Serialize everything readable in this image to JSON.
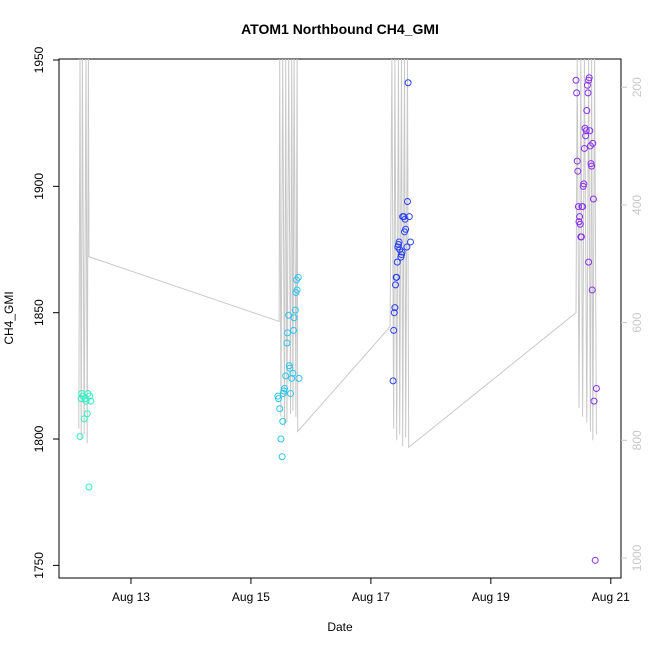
{
  "chart_data": {
    "type": "scatter",
    "title": "ATOM1 Northbound CH4_GMI",
    "xlabel": "Date",
    "ylabel": "CH4_GMI",
    "xlim": [
      11.8,
      21.17
    ],
    "xticks": [
      {
        "value": 13,
        "label": "Aug 13"
      },
      {
        "value": 15,
        "label": "Aug 15"
      },
      {
        "value": 17,
        "label": "Aug 17"
      },
      {
        "value": 19,
        "label": "Aug 19"
      },
      {
        "value": 21,
        "label": "Aug 21"
      }
    ],
    "ylim": [
      1745,
      1950.4
    ],
    "yticks": [
      1750,
      1800,
      1850,
      1900,
      1950
    ],
    "y2lim": [
      1034,
      152
    ],
    "y2ticks": [
      200,
      400,
      600,
      800,
      1000
    ],
    "y2color": "#c8c8c8",
    "series": [
      {
        "type": "line",
        "axis": "y2",
        "color": "#c8c8c8",
        "x": [
          12.13,
          12.15,
          12.17,
          12.19,
          12.22,
          12.25,
          12.27,
          12.29,
          12.3,
          15.47,
          15.48,
          15.5,
          15.53,
          15.56,
          15.58,
          15.6,
          15.63,
          15.66,
          15.68,
          15.7,
          15.72,
          15.75,
          15.77,
          15.78,
          17.32,
          17.35,
          17.38,
          17.4,
          17.43,
          17.46,
          17.48,
          17.51,
          17.53,
          17.56,
          17.58,
          17.61,
          17.63,
          20.42,
          20.44,
          20.47,
          20.5,
          20.53,
          20.56,
          20.6,
          20.63,
          20.66,
          20.68,
          20.7,
          20.73,
          20.76
        ],
        "values": [
          780,
          150,
          800,
          150,
          790,
          150,
          805,
          150,
          488,
          598,
          150,
          760,
          150,
          775,
          150,
          770,
          150,
          755,
          150,
          750,
          150,
          760,
          150,
          785,
          607,
          150,
          780,
          150,
          800,
          150,
          790,
          150,
          810,
          150,
          795,
          150,
          812,
          583,
          150,
          745,
          150,
          760,
          150,
          770,
          150,
          785,
          150,
          800,
          150,
          790
        ]
      },
      {
        "type": "points",
        "color": "#2ff0c0",
        "x": [
          12.15,
          12.17,
          12.18,
          12.2,
          12.22,
          12.24,
          12.25,
          12.27,
          12.28,
          12.3,
          12.31,
          12.33
        ],
        "values": [
          1801,
          1816,
          1818,
          1817,
          1808,
          1816,
          1815,
          1810,
          1818,
          1781,
          1817,
          1815
        ]
      },
      {
        "type": "points",
        "color": "#2ec4f0",
        "x": [
          15.45,
          15.46,
          15.48,
          15.5,
          15.52,
          15.53,
          15.54,
          15.55,
          15.56,
          15.58,
          15.6,
          15.61,
          15.63,
          15.64,
          15.65,
          15.66,
          15.68,
          15.7,
          15.71,
          15.72,
          15.74,
          15.75,
          15.76,
          15.77,
          15.79,
          15.8
        ],
        "values": [
          1817,
          1816,
          1812,
          1800,
          1793,
          1807,
          1818,
          1819,
          1820,
          1825,
          1838,
          1842,
          1849,
          1829,
          1828,
          1818,
          1824,
          1826,
          1843,
          1848,
          1851,
          1858,
          1863,
          1859,
          1864,
          1824
        ]
      },
      {
        "type": "points",
        "color": "#2a40f5",
        "x": [
          17.37,
          17.38,
          17.39,
          17.4,
          17.41,
          17.42,
          17.43,
          17.44,
          17.45,
          17.46,
          17.47,
          17.48,
          17.5,
          17.51,
          17.52,
          17.53,
          17.55,
          17.56,
          17.57,
          17.58,
          17.6,
          17.61,
          17.62,
          17.64,
          17.66
        ],
        "values": [
          1823,
          1843,
          1850,
          1852,
          1861,
          1864,
          1864,
          1870,
          1876,
          1877,
          1878,
          1875,
          1872,
          1873,
          1874,
          1888,
          1888,
          1882,
          1887,
          1883,
          1876,
          1894,
          1941,
          1888,
          1878
        ]
      },
      {
        "type": "points",
        "color": "#8a30f0",
        "x": [
          20.42,
          20.43,
          20.44,
          20.45,
          20.46,
          20.47,
          20.48,
          20.49,
          20.5,
          20.51,
          20.52,
          20.53,
          20.54,
          20.55,
          20.56,
          20.57,
          20.58,
          20.59,
          20.6,
          20.61,
          20.62,
          20.63,
          20.64,
          20.65,
          20.66,
          20.67,
          20.68,
          20.7,
          20.71,
          20.63,
          20.69,
          20.72,
          20.76,
          20.74
        ],
        "values": [
          1942,
          1937,
          1910,
          1906,
          1892,
          1886,
          1888,
          1885,
          1880,
          1880,
          1892,
          1892,
          1900,
          1901,
          1915,
          1923,
          1920,
          1922,
          1930,
          1940,
          1937,
          1942,
          1943,
          1922,
          1916,
          1909,
          1908,
          1917,
          1895,
          1870,
          1859,
          1815,
          1820,
          1752
        ]
      }
    ]
  }
}
